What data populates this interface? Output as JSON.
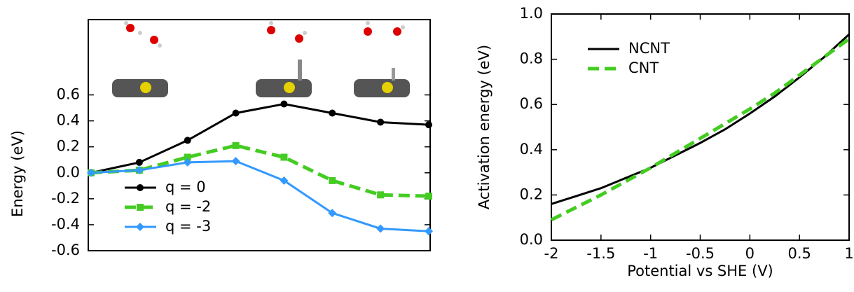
{
  "chart_data": [
    {
      "type": "line",
      "ylabel": "Energy (eV)",
      "categories": [
        null,
        null,
        null,
        null,
        null,
        null,
        null,
        null
      ],
      "ylim": [
        -0.6,
        1.18
      ],
      "yticks": [
        -0.6,
        -0.4,
        -0.2,
        {
          "value": 0,
          "label": "0.0"
        },
        0.2,
        0.4,
        0.6
      ],
      "legend": "lower left",
      "series": [
        {
          "name": "q = 0",
          "color": "#000000",
          "marker": "circle",
          "line_style": "solid",
          "values": [
            0.0,
            0.08,
            0.25,
            0.46,
            0.53,
            0.46,
            0.39,
            0.37
          ]
        },
        {
          "name": "q = -2",
          "color": "#44cc22",
          "marker": "square",
          "line_style": "dashed",
          "values": [
            0.0,
            0.02,
            0.12,
            0.21,
            0.12,
            -0.06,
            -0.17,
            -0.18
          ]
        },
        {
          "name": "q = -3",
          "color": "#3399ff",
          "marker": "diamond",
          "line_style": "solid",
          "values": [
            0.0,
            0.02,
            0.08,
            0.09,
            -0.06,
            -0.31,
            -0.43,
            -0.45
          ]
        }
      ]
    },
    {
      "type": "line",
      "xlabel": "Potential vs SHE (V)",
      "ylabel": "Activation energy (eV)",
      "x": [
        -2,
        -1.75,
        -1.5,
        -1.25,
        -1,
        -0.75,
        -0.5,
        -0.25,
        0,
        0.25,
        0.5,
        0.75,
        1
      ],
      "xlim": [
        -2,
        1
      ],
      "xticks": [
        -2,
        -1.5,
        -1,
        -0.5,
        0,
        0.5,
        1
      ],
      "ylim": [
        0,
        1
      ],
      "yticks": [
        {
          "value": 0,
          "label": "0.0"
        },
        0.2,
        0.4,
        0.6,
        0.8,
        {
          "value": 1,
          "label": "1.0"
        }
      ],
      "legend": "upper left",
      "series": [
        {
          "name": "NCNT",
          "color": "#000000",
          "line_style": "solid",
          "values": [
            0.16,
            0.195,
            0.23,
            0.275,
            0.32,
            0.375,
            0.43,
            0.49,
            0.56,
            0.635,
            0.72,
            0.81,
            0.91
          ]
        },
        {
          "name": "CNT",
          "color": "#44cc22",
          "line_style": "dashed",
          "values": [
            0.09,
            0.145,
            0.2,
            0.26,
            0.32,
            0.385,
            0.45,
            0.515,
            0.58,
            0.65,
            0.73,
            0.81,
            0.89
          ]
        }
      ]
    }
  ]
}
